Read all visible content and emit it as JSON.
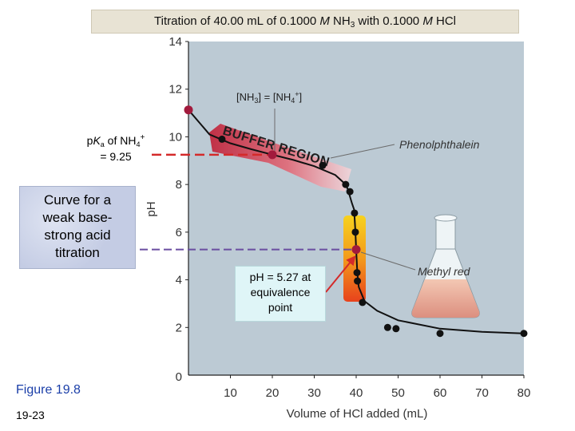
{
  "slide": {
    "title_parts": [
      "Titration of 40.00 mL of 0.1000 ",
      "M",
      " NH",
      "3",
      " with 0.1000 ",
      "M",
      "  HCl"
    ],
    "pka_label": {
      "p": "p",
      "K": "K",
      "a": "a",
      "of": " of NH",
      "sub4": "4",
      "plus": "+",
      "eq": "= 9.25"
    },
    "caption_lines": [
      "Curve for a",
      "weak base-",
      "strong acid",
      "titration"
    ],
    "equivalence_lines": [
      "pH = 5.27 at",
      "equivalence",
      "point"
    ],
    "figure_label": "Figure 19.8",
    "page_number": "19-23"
  },
  "chart_data": {
    "type": "line",
    "title": "Titration of 40.00 mL of 0.1000 M NH3 with 0.1000 M HCl",
    "xlabel": "Volume of HCl added (mL)",
    "ylabel": "pH",
    "xlim": [
      0,
      80
    ],
    "ylim": [
      0,
      14
    ],
    "x_ticks": [
      10,
      20,
      30,
      40,
      50,
      60,
      70,
      80
    ],
    "y_ticks": [
      2,
      4,
      6,
      8,
      10,
      12,
      14
    ],
    "origin_label": "0",
    "series": [
      {
        "name": "titration curve",
        "points": [
          {
            "x": 0.0,
            "y": 11.13
          },
          {
            "x": 5.0,
            "y": 10.1
          },
          {
            "x": 10.0,
            "y": 9.73
          },
          {
            "x": 15.0,
            "y": 9.48
          },
          {
            "x": 20.0,
            "y": 9.25
          },
          {
            "x": 25.0,
            "y": 9.03
          },
          {
            "x": 30.0,
            "y": 8.77
          },
          {
            "x": 35.0,
            "y": 8.4
          },
          {
            "x": 37.5,
            "y": 8.0
          },
          {
            "x": 38.0,
            "y": 7.8
          },
          {
            "x": 39.0,
            "y": 7.2
          },
          {
            "x": 39.5,
            "y": 6.95
          },
          {
            "x": 39.8,
            "y": 6.1
          },
          {
            "x": 40.0,
            "y": 5.27
          },
          {
            "x": 40.2,
            "y": 4.5
          },
          {
            "x": 40.4,
            "y": 4.05
          },
          {
            "x": 40.6,
            "y": 3.7
          },
          {
            "x": 42.0,
            "y": 3.1
          },
          {
            "x": 45.0,
            "y": 2.7
          },
          {
            "x": 50.0,
            "y": 2.3
          },
          {
            "x": 60.0,
            "y": 1.95
          },
          {
            "x": 70.0,
            "y": 1.82
          },
          {
            "x": 80.0,
            "y": 1.75
          }
        ],
        "markers": [
          {
            "x": 0.0,
            "y": 11.13,
            "highlight": true
          },
          {
            "x": 8.0,
            "y": 9.9,
            "highlight": false
          },
          {
            "x": 20.0,
            "y": 9.25,
            "highlight": true
          },
          {
            "x": 32.0,
            "y": 8.8,
            "highlight": false
          },
          {
            "x": 37.5,
            "y": 8.0,
            "highlight": false
          },
          {
            "x": 38.5,
            "y": 7.7,
            "highlight": false
          },
          {
            "x": 39.6,
            "y": 6.8,
            "highlight": false
          },
          {
            "x": 39.8,
            "y": 6.0,
            "highlight": false
          },
          {
            "x": 40.0,
            "y": 5.27,
            "highlight": true
          },
          {
            "x": 40.2,
            "y": 4.3,
            "highlight": false
          },
          {
            "x": 40.3,
            "y": 3.95,
            "highlight": false
          },
          {
            "x": 41.5,
            "y": 3.05,
            "highlight": false
          },
          {
            "x": 47.5,
            "y": 2.0,
            "highlight": false
          },
          {
            "x": 49.5,
            "y": 1.95,
            "highlight": false
          },
          {
            "x": 60.0,
            "y": 1.75,
            "highlight": false
          },
          {
            "x": 80.0,
            "y": 1.75,
            "highlight": false
          }
        ]
      }
    ],
    "annotations": {
      "buffer_region": "BUFFER REGION",
      "nh3_prefix": "[NH",
      "nh3_sub": "3",
      "nh3_mid": "] = [NH",
      "nh4_sub": "4",
      "nh4_sup": "+",
      "nh4_suffix": "]",
      "phenolphthalein": "Phenolphthalein",
      "methyl_red": "Methyl red"
    },
    "reference_lines": {
      "pka": 9.25,
      "equivalence_ph": 5.27,
      "equivalence_volume": 40.0
    },
    "colors": {
      "plot_bg": "#bccad4",
      "curve": "#111111",
      "highlight_marker": "#a21a3c",
      "pka_line": "#d42a2a",
      "eq_line": "#6a4ea0",
      "arrow": "#d42a2a",
      "methyl_red_band": "#f2a21a"
    }
  }
}
